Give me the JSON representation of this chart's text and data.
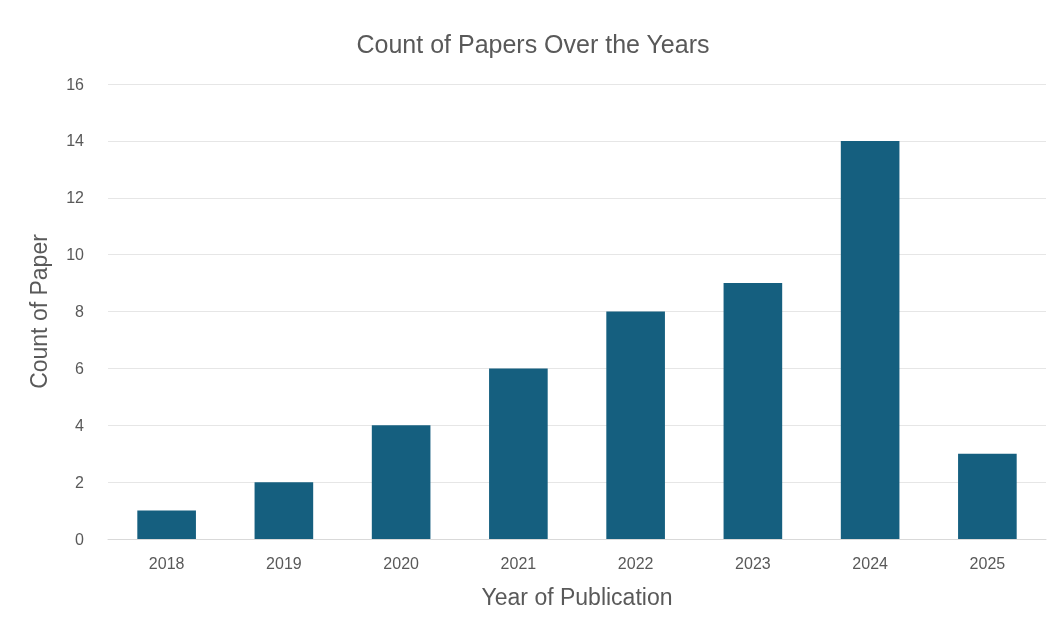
{
  "chart_data": {
    "type": "bar",
    "title": "Count of Papers Over the Years",
    "xlabel": "Year of Publication",
    "ylabel": "Count of Paper",
    "categories": [
      "2018",
      "2019",
      "2020",
      "2021",
      "2022",
      "2023",
      "2024",
      "2025"
    ],
    "values": [
      1,
      2,
      4,
      6,
      8,
      9,
      14,
      3
    ],
    "color": "#155f7f",
    "ylim": [
      0,
      16
    ],
    "yticks": [
      0,
      2,
      4,
      6,
      8,
      10,
      12,
      14,
      16
    ],
    "grid": "y"
  }
}
